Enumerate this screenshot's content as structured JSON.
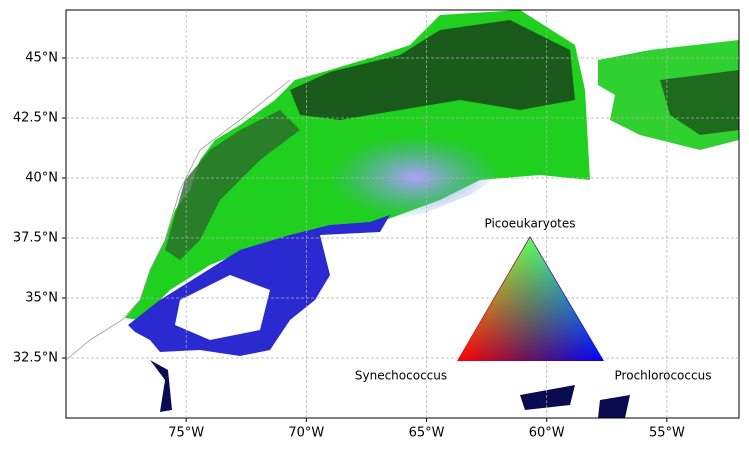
{
  "chart_data": {
    "type": "map",
    "xlim": [
      -80,
      -52
    ],
    "ylim": [
      30,
      47
    ],
    "xticks": [
      {
        "value": -75,
        "label": "75°W"
      },
      {
        "value": -70,
        "label": "70°W"
      },
      {
        "value": -65,
        "label": "65°W"
      },
      {
        "value": -60,
        "label": "60°W"
      },
      {
        "value": -55,
        "label": "55°W"
      }
    ],
    "yticks": [
      {
        "value": 32.5,
        "label": "32.5°N"
      },
      {
        "value": 35,
        "label": "35°N"
      },
      {
        "value": 37.5,
        "label": "37.5°N"
      },
      {
        "value": 40,
        "label": "40°N"
      },
      {
        "value": 42.5,
        "label": "42.5°N"
      },
      {
        "value": 45,
        "label": "45°N"
      }
    ],
    "grid": true,
    "legend": {
      "labels": [
        "Picoeukaryotes",
        "Synechococcus",
        "Prochlorococcus"
      ]
    }
  }
}
